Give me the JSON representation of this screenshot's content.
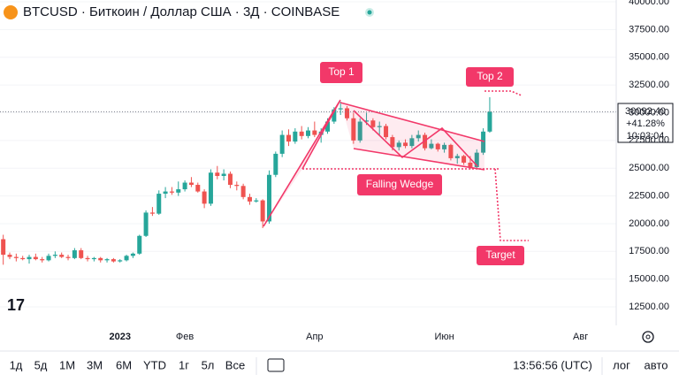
{
  "header": {
    "title": "BTCUSD · Биткоин / Доллар США · 3Д · COINBASE"
  },
  "toolbar": {
    "ranges": [
      "1д",
      "5д",
      "1М",
      "3М",
      "6М",
      "YTD",
      "1г",
      "5л",
      "Все"
    ],
    "clock": "13:56:56 (UTC)",
    "log": "лог",
    "auto": "авто"
  },
  "chart_data": {
    "type": "candlestick",
    "categories": [
      null,
      null,
      null,
      null,
      null,
      null,
      null,
      null,
      null,
      null,
      null,
      null,
      null,
      null,
      null,
      null,
      null,
      null,
      "2023",
      null,
      null,
      null,
      null,
      null,
      null,
      null,
      null,
      null,
      "Фев",
      null,
      null,
      null,
      null,
      null,
      null,
      null,
      null,
      null,
      null,
      null,
      null,
      null,
      null,
      null,
      null,
      null,
      null,
      null,
      "Апр",
      null,
      null,
      null,
      null,
      null,
      null,
      null,
      null,
      null,
      null,
      null,
      null,
      null,
      null,
      null,
      null,
      null,
      null,
      null,
      "Июн",
      null,
      null,
      null,
      null,
      null,
      null,
      null,
      null,
      null,
      null,
      null,
      null,
      null,
      null,
      null,
      null,
      null,
      null,
      null,
      null,
      "Авг",
      null,
      null,
      null,
      null,
      null
    ],
    "open": [
      18600,
      17200,
      17000,
      16900,
      16800,
      17000,
      16800,
      16700,
      17100,
      17200,
      17000,
      16900,
      17600,
      16900,
      16800,
      16900,
      16700,
      16800,
      16600,
      16700,
      17100,
      17300,
      18900,
      21000,
      20900,
      22700,
      22900,
      22800,
      23100,
      23700,
      23500,
      22900,
      21800,
      24600,
      24300,
      24500,
      23500,
      23400,
      22400,
      22000,
      22100,
      20200,
      24400,
      26300,
      28000,
      27400,
      28300,
      27900,
      28400,
      28000,
      28300,
      29200,
      30300,
      30400,
      29500,
      27500,
      29200,
      29300,
      28700,
      28800,
      27800,
      26900,
      27300,
      27000,
      27700,
      28000,
      26800,
      27200,
      26700,
      27100,
      25900,
      26100,
      25500,
      25100,
      26400,
      28300,
      null,
      null,
      null,
      null,
      null,
      null,
      null,
      null,
      null,
      null,
      null,
      null,
      null,
      null,
      null,
      null,
      null,
      null,
      null
    ],
    "high": [
      19000,
      17400,
      17300,
      17100,
      17200,
      17300,
      17000,
      17300,
      17500,
      17400,
      17200,
      17800,
      17800,
      17100,
      17000,
      17000,
      16900,
      16900,
      16800,
      17200,
      17400,
      19000,
      21200,
      21500,
      23000,
      23300,
      23300,
      23800,
      23900,
      24200,
      23700,
      23100,
      24900,
      25200,
      24900,
      24700,
      23800,
      23600,
      22700,
      22300,
      22200,
      24800,
      26500,
      28400,
      28500,
      28600,
      28800,
      28700,
      29200,
      28600,
      29500,
      30500,
      31000,
      30600,
      30000,
      29500,
      30000,
      29500,
      29200,
      29000,
      28000,
      27500,
      27600,
      28000,
      28400,
      28200,
      27600,
      27300,
      27300,
      27200,
      26300,
      26200,
      26100,
      26700,
      28600,
      31400,
      null,
      null,
      null,
      null,
      null,
      null,
      null,
      null,
      null,
      null,
      null,
      null,
      null,
      null,
      null,
      null,
      null,
      null,
      null
    ],
    "low": [
      16300,
      16800,
      16600,
      16700,
      16400,
      16700,
      16500,
      16600,
      16900,
      16900,
      16700,
      16800,
      16800,
      16600,
      16600,
      16500,
      16500,
      16500,
      16500,
      16600,
      16900,
      17200,
      18800,
      20700,
      20800,
      22300,
      22600,
      22500,
      22900,
      23300,
      22800,
      21400,
      21600,
      24000,
      23900,
      23200,
      23000,
      22200,
      21700,
      21900,
      19600,
      20000,
      24200,
      26000,
      27000,
      27200,
      27600,
      27700,
      27800,
      27300,
      28100,
      29000,
      29800,
      29300,
      27200,
      27300,
      28900,
      28400,
      28000,
      27600,
      26600,
      26600,
      26800,
      26800,
      27400,
      26600,
      26700,
      26500,
      26400,
      25700,
      25400,
      25300,
      24900,
      25000,
      26200,
      28200,
      null,
      null,
      null,
      null,
      null,
      null,
      null,
      null,
      null,
      null,
      null,
      null,
      null,
      null,
      null,
      null,
      null,
      null,
      null
    ],
    "close": [
      17200,
      17000,
      16900,
      16800,
      17000,
      16800,
      16700,
      17100,
      17200,
      17000,
      16900,
      17600,
      16900,
      16800,
      16900,
      16700,
      16800,
      16600,
      16700,
      17100,
      17300,
      18900,
      21000,
      20900,
      22700,
      22900,
      22800,
      23100,
      23700,
      23500,
      22900,
      21800,
      24600,
      24300,
      24500,
      23500,
      23400,
      22400,
      22000,
      22100,
      20200,
      24400,
      26300,
      28000,
      27400,
      28300,
      27900,
      28400,
      28000,
      28300,
      29200,
      30300,
      30400,
      29500,
      27500,
      29200,
      29300,
      28700,
      28800,
      27800,
      26900,
      27300,
      27000,
      27700,
      28000,
      26800,
      27200,
      26700,
      27100,
      25900,
      26100,
      25500,
      25100,
      26400,
      28300,
      30092.4,
      null,
      null,
      null,
      null,
      null,
      null,
      null,
      null,
      null,
      null,
      null,
      null,
      null,
      null,
      null,
      null,
      null,
      null,
      null
    ],
    "up_color": "#26a69a",
    "down_color": "#ef5350",
    "ylim": [
      10830,
      40160
    ],
    "yticks": [
      {
        "value": 12500,
        "label": "12500.00"
      },
      {
        "value": 15000,
        "label": "15000.00"
      },
      {
        "value": 17500,
        "label": "17500.00"
      },
      {
        "value": 20000,
        "label": "20000.00"
      },
      {
        "value": 22500,
        "label": "22500.00"
      },
      {
        "value": 25000,
        "label": "25000.00"
      },
      {
        "value": 27500,
        "label": "27500.00"
      },
      {
        "value": 30000,
        "label": "30000.00"
      },
      {
        "value": 32500,
        "label": "32500.00"
      },
      {
        "value": 35000,
        "label": "35000.00"
      },
      {
        "value": 37500,
        "label": "37500.00"
      },
      {
        "value": 40000,
        "label": "40000.00"
      }
    ],
    "last_price": {
      "label": "30092.40",
      "change": "+41.28%",
      "countdown": "10:03:04"
    },
    "annotations": [
      "Top 1",
      "Top 2",
      "Falling Wedge",
      "Target"
    ]
  }
}
